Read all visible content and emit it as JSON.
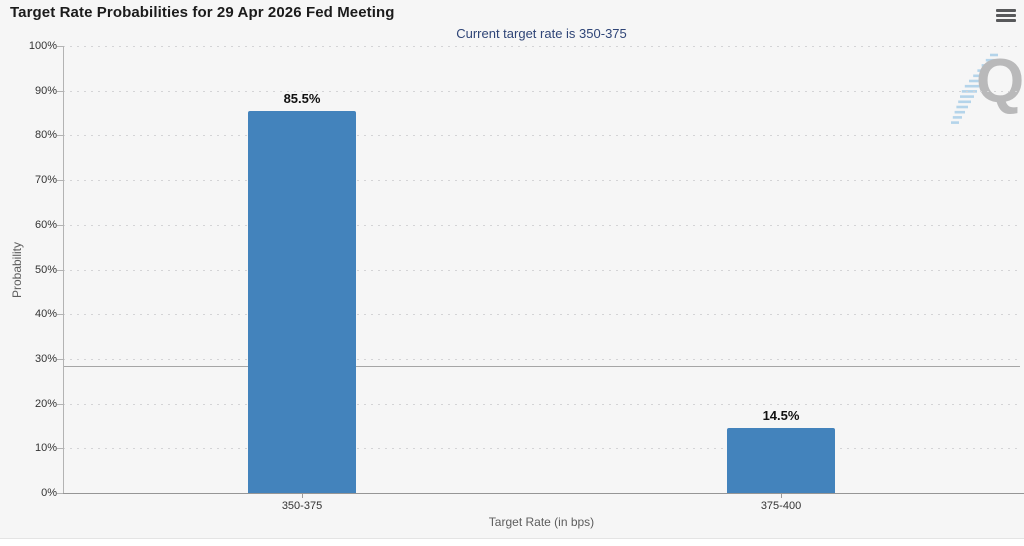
{
  "header": {
    "title": "Target Rate Probabilities for 29 Apr 2026 Fed Meeting",
    "menu_icon": "hamburger-menu"
  },
  "chart_data": {
    "type": "bar",
    "title": "Target Rate Probabilities for 29 Apr 2026 Fed Meeting",
    "subtitle": "Current target rate is 350-375",
    "categories": [
      "350-375",
      "375-400"
    ],
    "values": [
      85.5,
      14.5
    ],
    "value_labels": [
      "85.5%",
      "14.5%"
    ],
    "xlabel": "Target Rate (in bps)",
    "ylabel": "Probability",
    "ylim": [
      0,
      100
    ],
    "ytick_values": [
      0,
      10,
      20,
      30,
      40,
      50,
      60,
      70,
      80,
      90,
      100
    ],
    "ytick_labels": [
      "0%",
      "10%",
      "20%",
      "30%",
      "40%",
      "50%",
      "60%",
      "70%",
      "80%",
      "90%",
      "100%"
    ],
    "grid": "horizontal-dotted",
    "reference_line_value": 28.3,
    "legend_position": "none",
    "bar_color": "#4383bc"
  },
  "watermark": {
    "letter": "Q"
  }
}
